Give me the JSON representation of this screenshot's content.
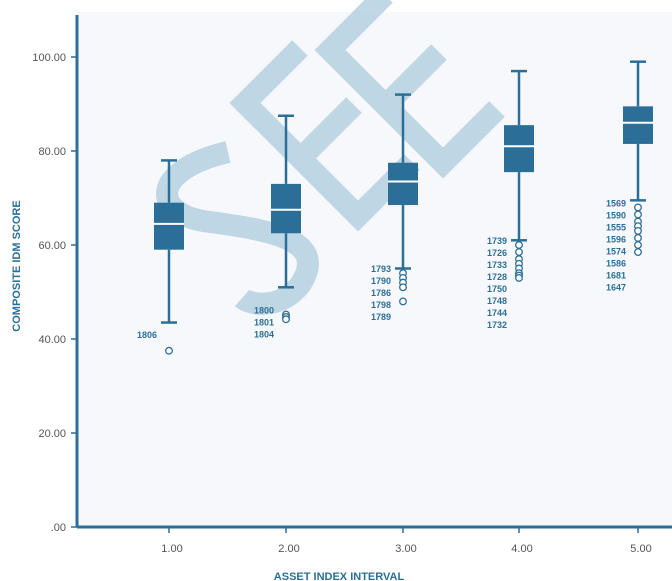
{
  "chart_data": {
    "type": "boxplot",
    "xlabel": "ASSET INDEX INTERVAL",
    "ylabel": "COMPOSITE IDM SCORE",
    "ylim": [
      0,
      105
    ],
    "yticks": [
      0,
      20,
      40,
      60,
      80,
      100
    ],
    "ytick_labels": [
      ".00",
      "20.00",
      "40.00",
      "60.00",
      "80.00",
      "100.00"
    ],
    "categories": [
      "1.00",
      "2.00",
      "3.00",
      "4.00",
      "5.00"
    ],
    "grid": false,
    "watermark": "SEE",
    "colors": {
      "box": "#2b6f98",
      "median": "#ffffff",
      "axis": "#2b6f98",
      "watermark": "#b5d0e0",
      "plot_bg": "#f7f8fb"
    },
    "boxes": [
      {
        "category": "1.00",
        "min": 43.5,
        "q1": 59,
        "median": 64.5,
        "q3": 69,
        "max": 78,
        "outliers": [
          {
            "id": "1806",
            "value": 37.5
          }
        ]
      },
      {
        "category": "2.00",
        "min": 51,
        "q1": 62.5,
        "median": 67.5,
        "q3": 73,
        "max": 87.5,
        "outliers": [
          {
            "id": "1800",
            "value": 45.2
          },
          {
            "id": "1801",
            "value": 44.7
          },
          {
            "id": "1804",
            "value": 44.2
          }
        ]
      },
      {
        "category": "3.00",
        "min": 55,
        "q1": 68.5,
        "median": 73.5,
        "q3": 77.5,
        "max": 92,
        "outliers": [
          {
            "id": "1793",
            "value": 54
          },
          {
            "id": "1790",
            "value": 53
          },
          {
            "id": "1786",
            "value": 52
          },
          {
            "id": "1798",
            "value": 51
          },
          {
            "id": "1789",
            "value": 48
          }
        ]
      },
      {
        "category": "4.00",
        "min": 61,
        "q1": 75.5,
        "median": 81,
        "q3": 85.5,
        "max": 97,
        "outliers": [
          {
            "id": "1739",
            "value": 60
          },
          {
            "id": "1726",
            "value": 58.5
          },
          {
            "id": "1733",
            "value": 57
          },
          {
            "id": "1728",
            "value": 56
          },
          {
            "id": "1750",
            "value": 55
          },
          {
            "id": "1748",
            "value": 54
          },
          {
            "id": "1744",
            "value": 53.5
          },
          {
            "id": "1732",
            "value": 53
          }
        ]
      },
      {
        "category": "5.00",
        "min": 69.5,
        "q1": 81.5,
        "median": 86,
        "q3": 89.5,
        "max": 99,
        "outliers": [
          {
            "id": "1569",
            "value": 68
          },
          {
            "id": "1590",
            "value": 66.5
          },
          {
            "id": "1555",
            "value": 65
          },
          {
            "id": "1596",
            "value": 64
          },
          {
            "id": "1574",
            "value": 63
          },
          {
            "id": "1586",
            "value": 61.5
          },
          {
            "id": "1681",
            "value": 60
          },
          {
            "id": "1647",
            "value": 58.5
          }
        ]
      }
    ]
  }
}
